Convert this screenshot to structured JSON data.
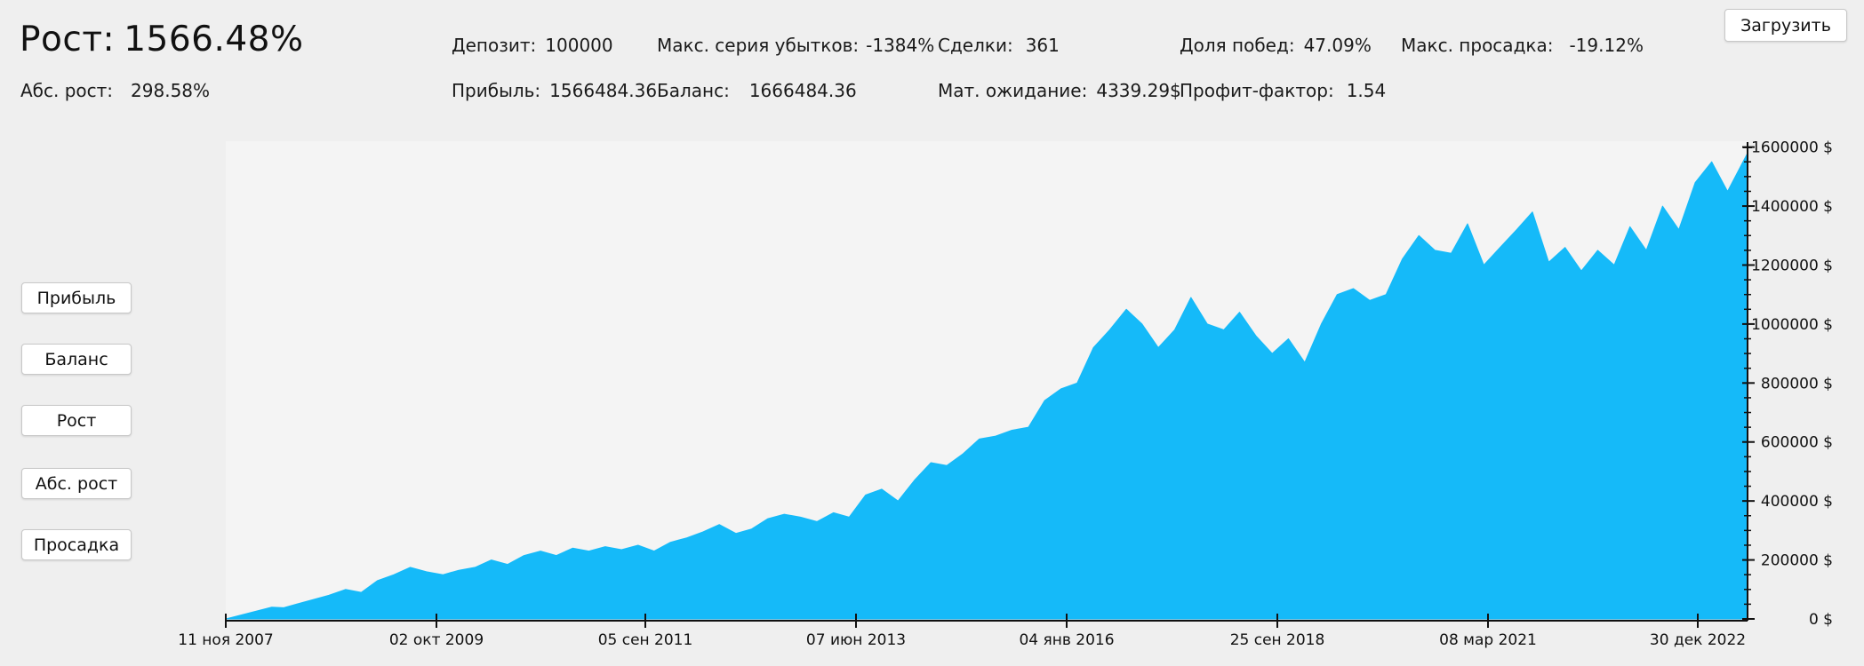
{
  "stats": {
    "growth": {
      "label": "Рост:",
      "value": "1566.48%"
    },
    "abs_growth": {
      "label": "Абс. рост:",
      "value": "298.58%"
    },
    "deposit": {
      "label": "Депозит:",
      "value": "100000"
    },
    "profit": {
      "label": "Прибыль:",
      "value": "1566484.36"
    },
    "max_loss_streak": {
      "label": "Макс. серия убытков:",
      "value": "-1384%"
    },
    "balance": {
      "label": "Баланс:",
      "value": "1666484.36"
    },
    "trades": {
      "label": "Сделки:",
      "value": "361"
    },
    "expectancy": {
      "label": "Мат. ожидание:",
      "value": "4339.29$"
    },
    "win_rate": {
      "label": "Доля побед:",
      "value": "47.09%"
    },
    "profit_factor": {
      "label": "Профит-фактор:",
      "value": "1.54"
    },
    "max_drawdown": {
      "label": "Макс. просадка:",
      "value": "-19.12%"
    }
  },
  "buttons": {
    "load": "Загрузить",
    "profit": "Прибыль",
    "balance": "Баланс",
    "growth": "Рост",
    "abs_growth": "Абс. рост",
    "drawdown": "Просадка"
  },
  "chart_data": {
    "type": "area",
    "title": "",
    "xlabel": "",
    "ylabel": "",
    "x_ticks": [
      "11 ноя 2007",
      "02 окт 2009",
      "05 сен 2011",
      "07 июн 2013",
      "04 янв 2016",
      "25 сен 2018",
      "08 мар 2021",
      "30 дек 2022"
    ],
    "y_ticks": [
      "0 $",
      "200000 $",
      "400000 $",
      "600000 $",
      "800000 $",
      "1000000 $",
      "1200000 $",
      "1400000 $",
      "1600000 $"
    ],
    "ylim": [
      0,
      1620000
    ],
    "x_range": [
      "2007-11-11",
      "2023-06-15"
    ],
    "grid": false,
    "series": [
      {
        "color": "#15baf9",
        "x": [
          "2007-11-11",
          "2008-05-01",
          "2008-06-15",
          "2008-08-01",
          "2008-10-01",
          "2008-12-01",
          "2009-02-01",
          "2009-04-01",
          "2009-06-01",
          "2009-08-01",
          "2009-10-01",
          "2009-12-01",
          "2010-02-01",
          "2010-04-01",
          "2010-06-01",
          "2010-08-01",
          "2010-10-01",
          "2010-12-01",
          "2011-02-01",
          "2011-04-01",
          "2011-06-01",
          "2011-08-01",
          "2011-10-01",
          "2011-12-01",
          "2012-02-01",
          "2012-04-01",
          "2012-06-01",
          "2012-08-01",
          "2012-10-01",
          "2012-12-01",
          "2013-02-01",
          "2013-04-01",
          "2013-06-01",
          "2013-08-01",
          "2013-10-01",
          "2013-12-01",
          "2014-02-01",
          "2014-04-01",
          "2014-06-01",
          "2014-08-01",
          "2014-10-01",
          "2014-12-01",
          "2015-02-01",
          "2015-04-01",
          "2015-06-01",
          "2015-08-01",
          "2015-10-01",
          "2015-12-01",
          "2016-02-01",
          "2016-04-01",
          "2016-06-01",
          "2016-08-01",
          "2016-10-01",
          "2016-12-01",
          "2017-02-01",
          "2017-04-01",
          "2017-06-01",
          "2017-08-01",
          "2017-10-01",
          "2017-12-01",
          "2018-02-01",
          "2018-04-01",
          "2018-06-01",
          "2018-08-01",
          "2018-10-01",
          "2018-12-01",
          "2019-02-01",
          "2019-04-01",
          "2019-06-01",
          "2019-08-01",
          "2019-10-01",
          "2019-12-01",
          "2020-02-01",
          "2020-04-01",
          "2020-06-01",
          "2020-08-01",
          "2020-10-01",
          "2020-12-01",
          "2021-02-01",
          "2021-04-01",
          "2021-06-01",
          "2021-08-01",
          "2021-10-01",
          "2021-12-01",
          "2022-02-01",
          "2022-04-01",
          "2022-06-01",
          "2022-08-01",
          "2022-10-01",
          "2022-12-01",
          "2023-02-01",
          "2023-04-01",
          "2023-06-15"
        ],
        "y": [
          0,
          40000,
          38000,
          50000,
          65000,
          80000,
          100000,
          90000,
          130000,
          150000,
          175000,
          160000,
          150000,
          165000,
          175000,
          200000,
          185000,
          215000,
          230000,
          215000,
          240000,
          230000,
          245000,
          235000,
          250000,
          230000,
          260000,
          275000,
          295000,
          320000,
          290000,
          305000,
          340000,
          355000,
          345000,
          330000,
          360000,
          345000,
          420000,
          440000,
          400000,
          470000,
          530000,
          520000,
          560000,
          610000,
          620000,
          640000,
          650000,
          740000,
          780000,
          800000,
          920000,
          980000,
          1050000,
          1000000,
          920000,
          980000,
          1090000,
          1000000,
          980000,
          1040000,
          960000,
          900000,
          950000,
          870000,
          1000000,
          1100000,
          1120000,
          1080000,
          1100000,
          1220000,
          1300000,
          1250000,
          1240000,
          1340000,
          1200000,
          1260000,
          1320000,
          1380000,
          1210000,
          1260000,
          1180000,
          1250000,
          1200000,
          1330000,
          1250000,
          1400000,
          1320000,
          1480000,
          1550000,
          1450000,
          1580000
        ]
      }
    ]
  }
}
